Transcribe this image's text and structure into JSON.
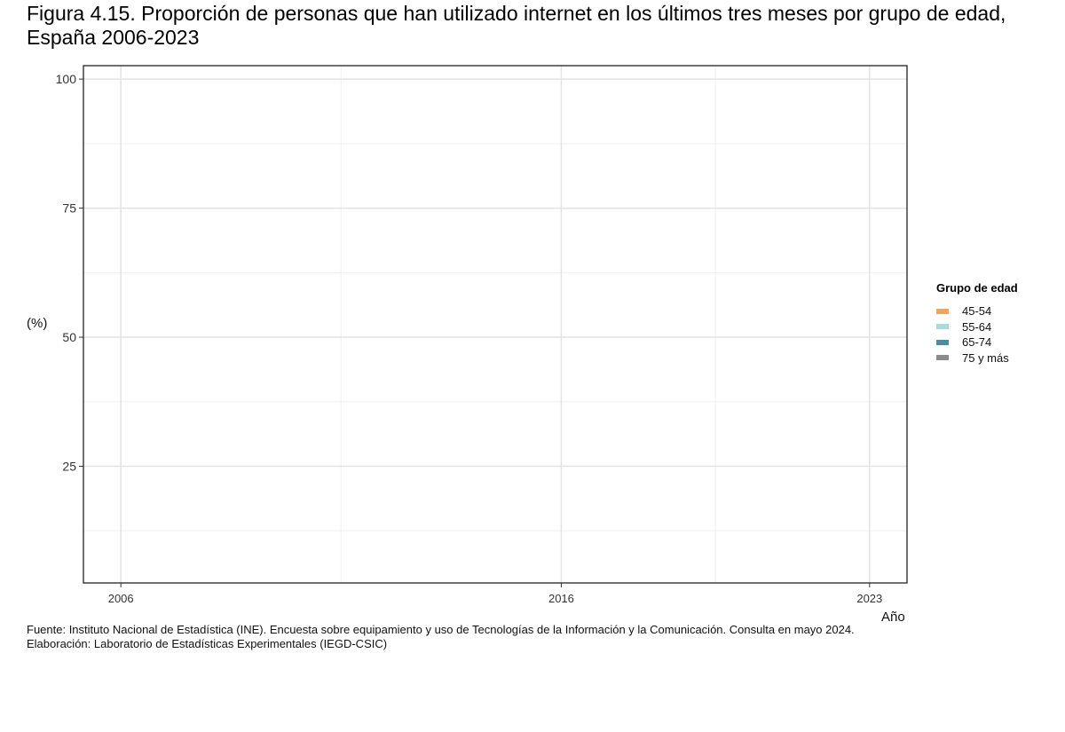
{
  "title_lines": [
    "Figura 4.15. Proporción de personas que han utilizado internet en los últimos tres meses por grupo de edad,",
    "España 2006-2023"
  ],
  "caption_lines": [
    "Fuente: Instituto Nacional de Estadística (INE). Encuesta sobre equipamiento y uso de Tecnologías de la Información y la Comunicación. Consulta en mayo 2024.",
    "Elaboración: Laboratorio de Estadísticas Experimentales (IEGD-CSIC)"
  ],
  "chart_data": {
    "type": "line",
    "title": "Figura 4.15. Proporción de personas que han utilizado internet en los últimos tres meses por grupo de edad, España 2006-2023",
    "xlabel": "Año",
    "ylabel": "(%)",
    "xlim": [
      2005.15,
      2023.85
    ],
    "ylim": [
      2.4,
      102.6
    ],
    "x_ticks": [
      2006,
      2016,
      2023
    ],
    "x_minor_ticks": [
      2011,
      2019.5
    ],
    "y_ticks": [
      25,
      50,
      75,
      100
    ],
    "y_minor_ticks": [
      12.5,
      37.5,
      62.5,
      87.5
    ],
    "grid": true,
    "legend_title": "Grupo de edad",
    "legend_position": "right",
    "series": [
      {
        "name": "45-54",
        "color": "#F2A55A",
        "values": []
      },
      {
        "name": "55-64",
        "color": "#A8DCDC",
        "values": []
      },
      {
        "name": "65-74",
        "color": "#4A8CA8",
        "values": []
      },
      {
        "name": "75 y más",
        "color": "#8C8C8C",
        "values": []
      }
    ]
  }
}
